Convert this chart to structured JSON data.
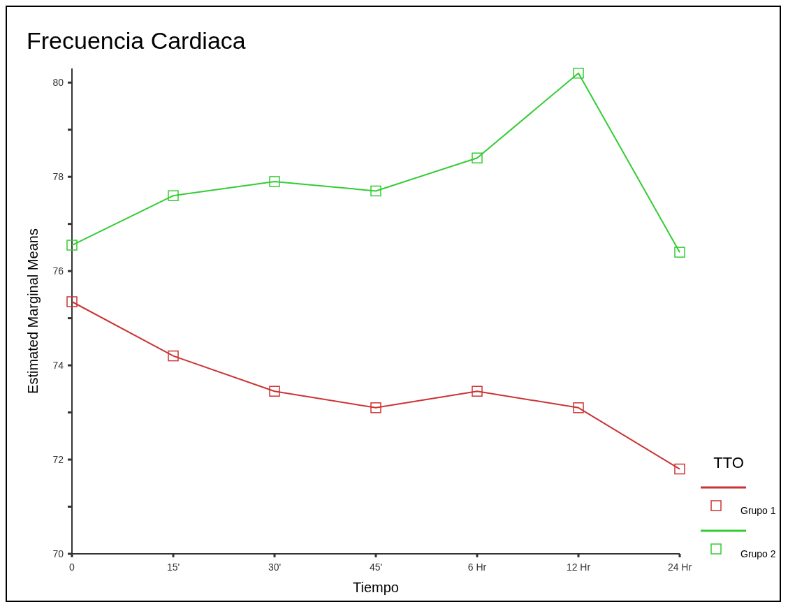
{
  "chart_data": {
    "type": "line",
    "title": "Frecuencia Cardiaca",
    "xlabel": "Tiempo",
    "ylabel": "Estimated Marginal Means",
    "legend_title": "TTO",
    "categories": [
      "0",
      "15'",
      "30'",
      "45'",
      "6 Hr",
      "12 Hr",
      "24 Hr"
    ],
    "series": [
      {
        "name": "Grupo 1",
        "color": "#cc3333",
        "values": [
          75.35,
          74.2,
          73.45,
          73.1,
          73.45,
          73.1,
          71.8
        ]
      },
      {
        "name": "Grupo 2",
        "color": "#33cc33",
        "values": [
          76.55,
          77.6,
          77.9,
          77.7,
          78.4,
          80.2,
          76.4
        ]
      }
    ],
    "ylim": [
      70,
      80.3
    ],
    "yticks": [
      70,
      {
        "value": 71,
        "label": null
      },
      72,
      {
        "value": 73,
        "label": null
      },
      74,
      {
        "value": 75,
        "label": null
      },
      76,
      {
        "value": 77,
        "label": null
      },
      78,
      {
        "value": 79,
        "label": null
      },
      80
    ],
    "grid": false,
    "legend": "bottom right",
    "marker": "square",
    "line_style": "solid"
  }
}
